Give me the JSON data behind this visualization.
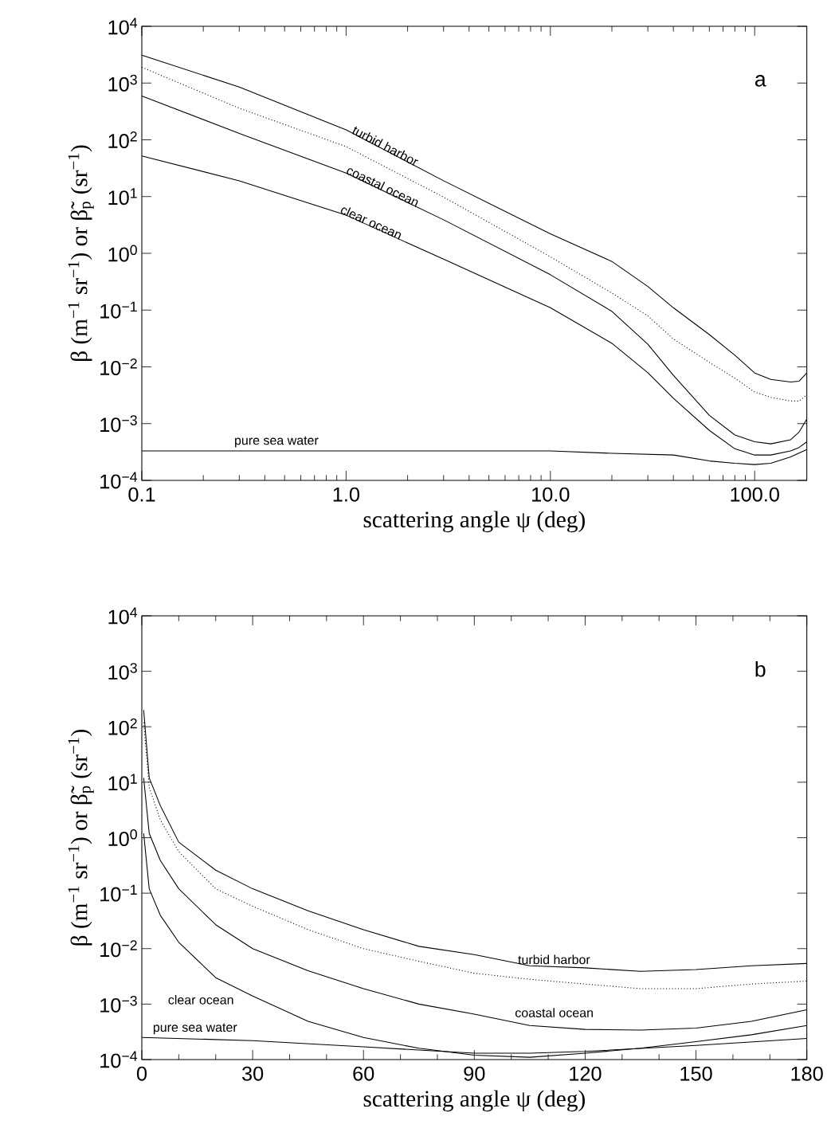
{
  "chart_data": [
    {
      "type": "line",
      "xlabel": "scattering angle ψ (deg)",
      "ylabel": "β (m$^{−1}$ sr$^{−1}$) or β̃$_{p}$ (sr$^{−1}$)",
      "log": "xy",
      "xlim": [
        0.1,
        180
      ],
      "ylim": [
        0.0001,
        10000
      ],
      "xticks": [
        0.1,
        {
          "value": 1,
          "label": "1.0"
        },
        {
          "value": 10,
          "label": "10.0"
        },
        {
          "value": 100,
          "label": "100.0"
        }
      ],
      "yticks": [
        {
          "value": 0.0001,
          "label": "10$^{−4}$"
        },
        {
          "value": 0.001,
          "label": "10$^{−3}$"
        },
        {
          "value": 0.01,
          "label": "10$^{−2}$"
        },
        {
          "value": 0.1,
          "label": "10$^{−1}$"
        },
        {
          "value": 1,
          "label": "10$^{0}$"
        },
        {
          "value": 10,
          "label": "10$^{1}$"
        },
        {
          "value": 100,
          "label": "10$^{2}$"
        },
        {
          "value": 1000,
          "label": "10$^{3}$"
        },
        {
          "value": 10000,
          "label": "10$^{4}$"
        }
      ],
      "annotations": [
        "a"
      ],
      "series": [
        {
          "name": "turbid harbor",
          "color": "#000000",
          "line_style": "solid",
          "x": [
            0.1,
            0.3,
            1,
            3,
            10,
            20,
            30,
            40,
            60,
            80,
            100,
            120,
            150,
            165,
            180
          ],
          "values": [
            3100,
            850,
            150,
            19,
            2.2,
            0.72,
            0.26,
            0.11,
            0.037,
            0.016,
            0.0078,
            0.006,
            0.0054,
            0.0056,
            0.0078
          ]
        },
        {
          "color": "#000000",
          "line_style": "dotted",
          "x": [
            0.1,
            0.3,
            1,
            3,
            10,
            20,
            30,
            40,
            60,
            80,
            100,
            120,
            150,
            165,
            180
          ],
          "values": [
            1900,
            360,
            76,
            9.8,
            0.87,
            0.2,
            0.079,
            0.031,
            0.012,
            0.0063,
            0.0036,
            0.0029,
            0.0025,
            0.0025,
            0.0032
          ]
        },
        {
          "name": "coastal ocean",
          "color": "#000000",
          "line_style": "solid",
          "x": [
            0.1,
            0.3,
            1,
            3,
            10,
            20,
            30,
            40,
            60,
            80,
            100,
            120,
            150,
            165,
            180
          ],
          "values": [
            590,
            130,
            26,
            3.9,
            0.42,
            0.095,
            0.025,
            0.0071,
            0.0014,
            0.00063,
            0.00048,
            0.00044,
            0.00052,
            0.00071,
            0.0012
          ]
        },
        {
          "name": "clear ocean",
          "color": "#000000",
          "line_style": "solid",
          "x": [
            0.1,
            0.3,
            1,
            3,
            10,
            20,
            30,
            40,
            60,
            80,
            100,
            120,
            150,
            165,
            180
          ],
          "values": [
            52,
            19,
            4.7,
            0.79,
            0.11,
            0.026,
            0.0079,
            0.0028,
            0.00076,
            0.00036,
            0.00028,
            0.00028,
            0.00033,
            0.00038,
            0.00048
          ]
        },
        {
          "name": "pure sea water",
          "color": "#000000",
          "line_style": "solid",
          "x": [
            0.1,
            1,
            10,
            20,
            40,
            60,
            80,
            100,
            120,
            150,
            180
          ],
          "values": [
            0.00033,
            0.00033,
            0.00033,
            0.0003,
            0.00028,
            0.00022,
            0.0002,
            0.00019,
            0.0002,
            0.00026,
            0.00035
          ]
        }
      ]
    },
    {
      "type": "line",
      "xlabel": "scattering angle ψ (deg)",
      "ylabel": "β (m$^{−1}$ sr$^{−1}$) or β̃$_{p}$ (sr$^{−1}$)",
      "log": "y",
      "xlim": [
        0,
        180
      ],
      "ylim": [
        0.0001,
        10000
      ],
      "xticks": [
        0,
        30,
        60,
        90,
        120,
        150,
        180
      ],
      "yticks": [
        {
          "value": 0.0001,
          "label": "10$^{−4}$"
        },
        {
          "value": 0.001,
          "label": "10$^{−3}$"
        },
        {
          "value": 0.01,
          "label": "10$^{−2}$"
        },
        {
          "value": 0.1,
          "label": "10$^{−1}$"
        },
        {
          "value": 1,
          "label": "10$^{0}$"
        },
        {
          "value": 10,
          "label": "10$^{1}$"
        },
        {
          "value": 100,
          "label": "10$^{2}$"
        },
        {
          "value": 1000,
          "label": "10$^{3}$"
        },
        {
          "value": 10000,
          "label": "10$^{4}$"
        }
      ],
      "annotations": [
        "b"
      ],
      "series": [
        {
          "name": "turbid harbor",
          "color": "#000000",
          "line_style": "solid",
          "x": [
            0.5,
            2,
            5,
            10,
            20,
            30,
            45,
            60,
            75,
            90,
            105,
            120,
            135,
            150,
            165,
            180
          ],
          "values": [
            200,
            12,
            3.8,
            0.83,
            0.26,
            0.12,
            0.048,
            0.022,
            0.011,
            0.0078,
            0.0049,
            0.0045,
            0.0039,
            0.0042,
            0.0049,
            0.0054
          ]
        },
        {
          "color": "#000000",
          "line_style": "dotted",
          "x": [
            0.5,
            2,
            5,
            10,
            20,
            30,
            45,
            60,
            75,
            90,
            105,
            120,
            135,
            150,
            165,
            180
          ],
          "values": [
            120,
            8.1,
            2.1,
            0.56,
            0.12,
            0.058,
            0.022,
            0.01,
            0.0059,
            0.0036,
            0.0028,
            0.0023,
            0.0019,
            0.0019,
            0.0023,
            0.0026
          ]
        },
        {
          "name": "coastal ocean",
          "color": "#000000",
          "line_style": "solid",
          "x": [
            0.5,
            2,
            5,
            10,
            20,
            30,
            45,
            60,
            75,
            90,
            105,
            120,
            135,
            150,
            165,
            180
          ],
          "values": [
            12,
            1.2,
            0.39,
            0.12,
            0.027,
            0.01,
            0.004,
            0.0019,
            0.001,
            0.00066,
            0.00041,
            0.00035,
            0.00034,
            0.00037,
            0.00049,
            0.00079
          ]
        },
        {
          "name": "clear ocean",
          "color": "#000000",
          "line_style": "solid",
          "x": [
            0.5,
            2,
            5,
            10,
            20,
            30,
            45,
            60,
            75,
            90,
            105,
            120,
            135,
            150,
            165,
            180
          ],
          "values": [
            1.2,
            0.12,
            0.04,
            0.013,
            0.003,
            0.0014,
            0.00049,
            0.00025,
            0.00016,
            0.00012,
            0.00011,
            0.00013,
            0.00016,
            0.00021,
            0.00028,
            0.00041
          ]
        },
        {
          "name": "pure sea water",
          "color": "#000000",
          "line_style": "solid",
          "x": [
            0,
            30,
            60,
            90,
            105,
            120,
            150,
            180
          ],
          "values": [
            0.00025,
            0.00022,
            0.00017,
            0.00013,
            0.00013,
            0.00014,
            0.00018,
            0.00024
          ]
        }
      ]
    }
  ]
}
